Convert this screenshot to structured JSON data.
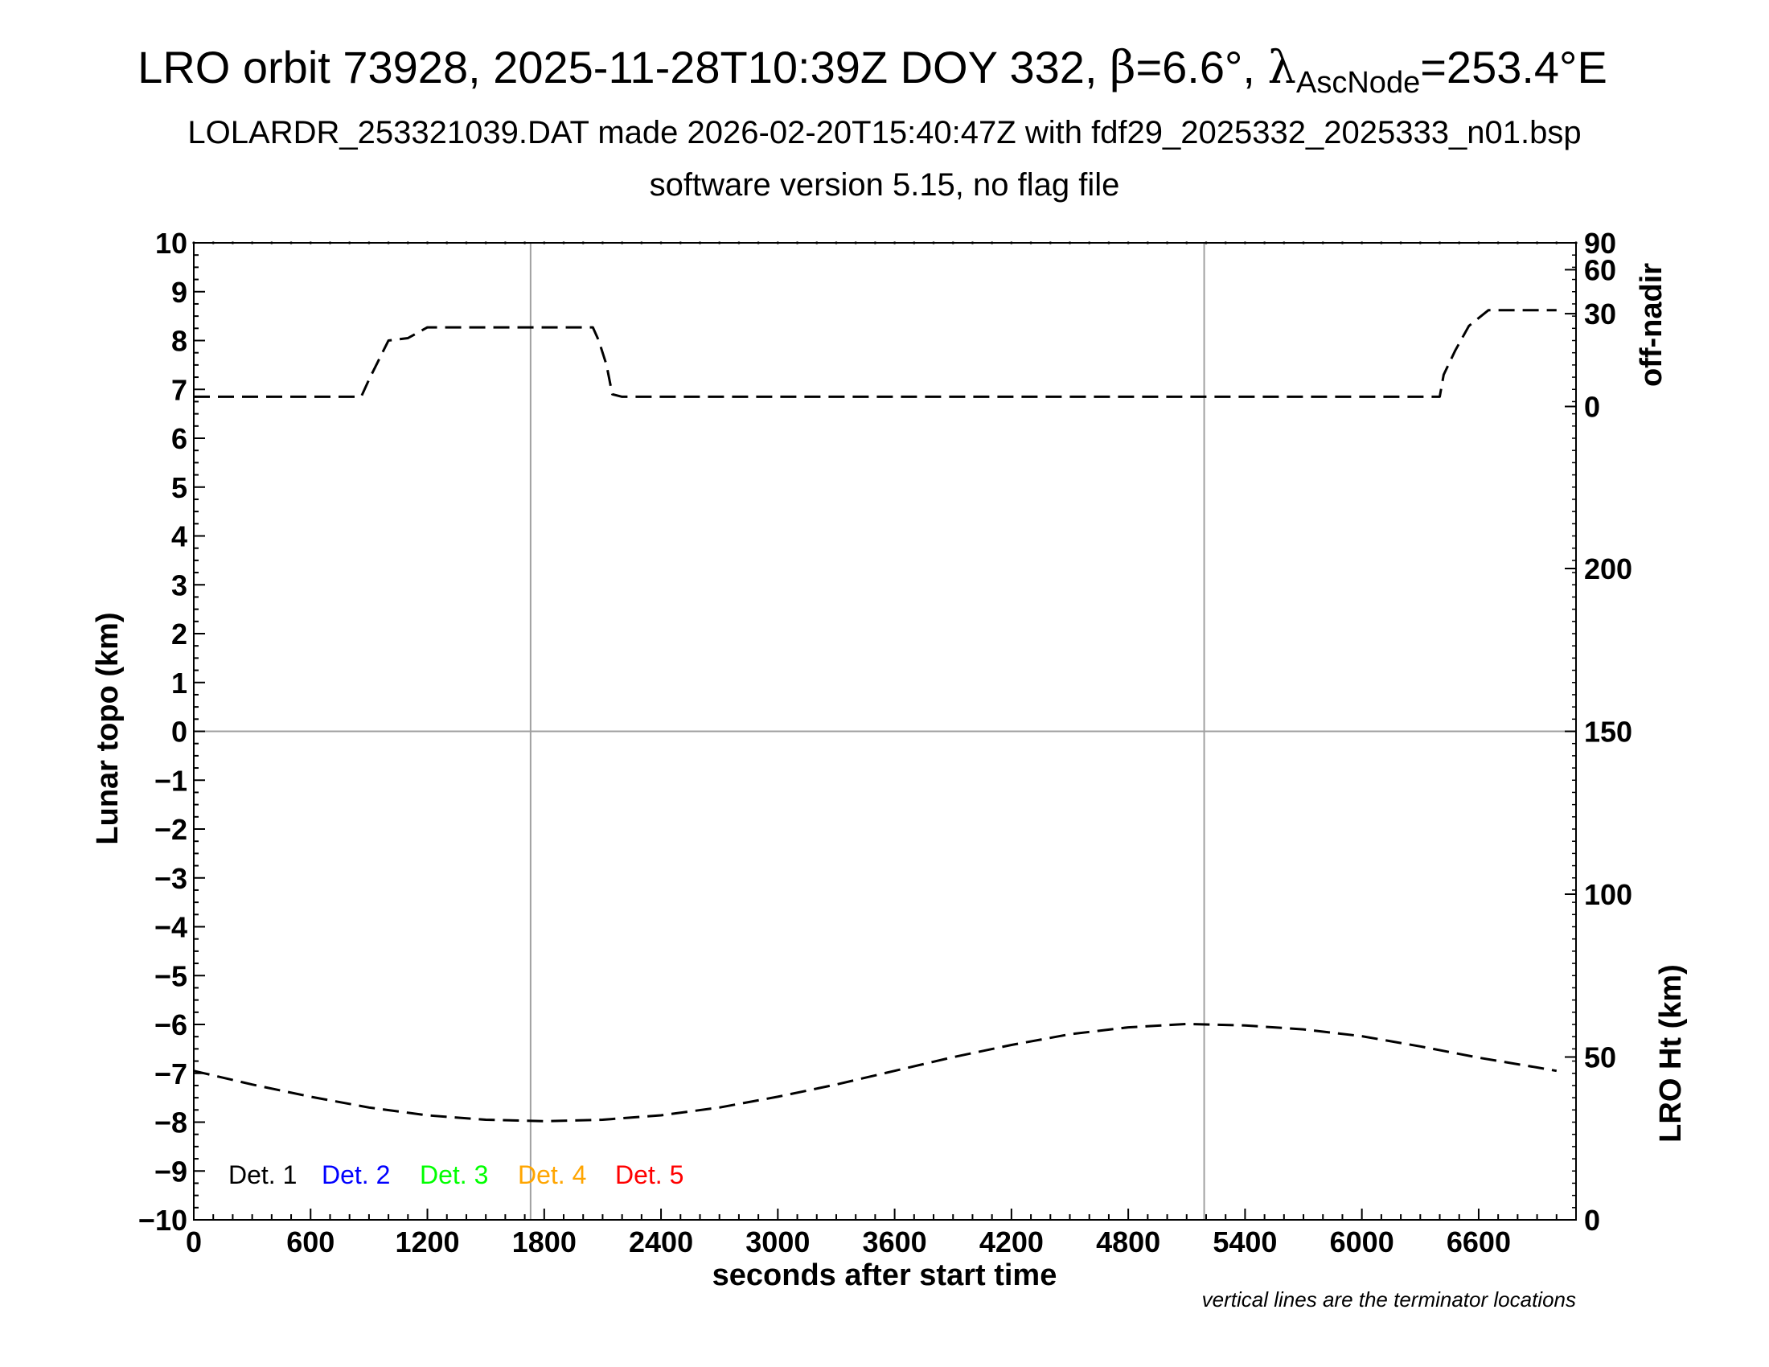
{
  "title": {
    "prefix": "LRO orbit 73928, 2025-11-28T10:39Z DOY 332, ",
    "beta_symbol": "β",
    "beta_value": "=6.6°, ",
    "lambda_symbol": "λ",
    "lambda_sub": "AscNode",
    "lambda_value": "=253.4°E"
  },
  "subtitle1": "LOLARDR_253321039.DAT made 2026-02-20T15:40:47Z with fdf29_2025332_2025333_n01.bsp",
  "subtitle2": "software version 5.15, no flag file",
  "footnote": "vertical lines are the terminator locations",
  "chart_data": {
    "type": "line",
    "xlabel": "seconds after start time",
    "ylabel_left": "Lunar topo (km)",
    "ylabel_right_top": "off-nadir",
    "ylabel_right_bottom": "LRO Ht (km)",
    "xlim": [
      0,
      7100
    ],
    "ylim_left": [
      -10,
      10
    ],
    "x_ticks": [
      "0",
      "600",
      "1200",
      "1800",
      "2400",
      "3000",
      "3600",
      "4200",
      "4800",
      "5400",
      "6000",
      "6600"
    ],
    "x_tick_values": [
      0,
      600,
      1200,
      1800,
      2400,
      3000,
      3600,
      4200,
      4800,
      5400,
      6000,
      6600
    ],
    "y_ticks_left": [
      "10",
      "9",
      "8",
      "7",
      "6",
      "5",
      "4",
      "3",
      "2",
      "1",
      "0",
      "−1",
      "−2",
      "−3",
      "−4",
      "−5",
      "−6",
      "−7",
      "−8",
      "−9",
      "−10"
    ],
    "y_tick_values_left": [
      10,
      9,
      8,
      7,
      6,
      5,
      4,
      3,
      2,
      1,
      0,
      -1,
      -2,
      -3,
      -4,
      -5,
      -6,
      -7,
      -8,
      -9,
      -10
    ],
    "offnadir_axis": {
      "ticks": [
        "90",
        "60",
        "30",
        "0"
      ],
      "tick_left_values": [
        10,
        9.45,
        8.55,
        6.65
      ]
    },
    "height_axis": {
      "ticks": [
        "200",
        "150",
        "100",
        "50",
        "0"
      ],
      "tick_values_km": [
        200,
        150,
        100,
        50,
        0
      ],
      "range_km": [
        0,
        300
      ]
    },
    "terminator_lines_x": [
      1730,
      5190
    ],
    "zero_line": true,
    "legend": [
      {
        "label": "Det. 1",
        "color": "#000000"
      },
      {
        "label": "Det. 2",
        "color": "#0000ff"
      },
      {
        "label": "Det. 3",
        "color": "#00ff00"
      },
      {
        "label": "Det. 4",
        "color": "#ffa500"
      },
      {
        "label": "Det. 5",
        "color": "#ff0000"
      }
    ],
    "series": [
      {
        "style": "dashed",
        "color": "#000000",
        "x": [
          0,
          860,
          900,
          950,
          1000,
          1100,
          1200,
          1500,
          1800,
          2050,
          2080,
          2120,
          2150,
          2200,
          3000,
          4000,
          5000,
          6000,
          6400,
          6420,
          6480,
          6550,
          6650,
          6900,
          7000
        ],
        "y": [
          6.85,
          6.85,
          7.2,
          7.6,
          8.0,
          8.05,
          8.27,
          8.27,
          8.27,
          8.27,
          8.0,
          7.5,
          6.9,
          6.85,
          6.85,
          6.85,
          6.85,
          6.85,
          6.85,
          7.3,
          7.8,
          8.3,
          8.62,
          8.62,
          8.62
        ]
      },
      {
        "style": "dashed",
        "color": "#000000",
        "x": [
          0,
          300,
          600,
          900,
          1200,
          1500,
          1800,
          2100,
          2400,
          2700,
          3000,
          3300,
          3600,
          3900,
          4200,
          4500,
          4800,
          5100,
          5400,
          5700,
          6000,
          6300,
          6600,
          6900,
          7000
        ],
        "y": [
          -6.95,
          -7.23,
          -7.48,
          -7.7,
          -7.86,
          -7.95,
          -7.98,
          -7.95,
          -7.86,
          -7.7,
          -7.48,
          -7.23,
          -6.95,
          -6.67,
          -6.42,
          -6.2,
          -6.06,
          -5.99,
          -6.02,
          -6.1,
          -6.24,
          -6.45,
          -6.68,
          -6.88,
          -6.95
        ]
      }
    ]
  }
}
